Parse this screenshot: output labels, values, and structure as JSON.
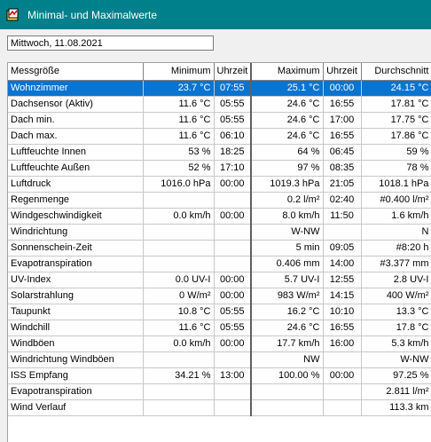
{
  "window": {
    "title": "Minimal- und Maximalwerte"
  },
  "date": "Mittwoch, 11.08.2021",
  "columns": {
    "name": "Messgröße",
    "min": "Minimum",
    "min_time": "Uhrzeit",
    "max": "Maximum",
    "max_time": "Uhrzeit",
    "avg": "Durchschnitt"
  },
  "rows": [
    [
      "Wohnzimmer",
      "23.7 °C",
      "07:55",
      "25.1 °C",
      "00:00",
      "24.15 °C"
    ],
    [
      "Dachsensor (Aktiv)",
      "11.6 °C",
      "05:55",
      "24.6 °C",
      "16:55",
      "17.81 °C"
    ],
    [
      "Dach min.",
      "11.6 °C",
      "05:55",
      "24.6 °C",
      "17:00",
      "17.75 °C"
    ],
    [
      "Dach max.",
      "11.6 °C",
      "06:10",
      "24.6 °C",
      "16:55",
      "17.86 °C"
    ],
    [
      "Luftfeuchte Innen",
      "53 %",
      "18:25",
      "64 %",
      "06:45",
      "59 %"
    ],
    [
      "Luftfeuchte Außen",
      "52 %",
      "17:10",
      "97 %",
      "08:35",
      "78 %"
    ],
    [
      "Luftdruck",
      "1016.0 hPa",
      "00:00",
      "1019.3 hPa",
      "21:05",
      "1018.1 hPa"
    ],
    [
      "Regenmenge",
      "",
      "",
      "0.2 l/m²",
      "02:40",
      "#0.400 l/m²"
    ],
    [
      "Windgeschwindigkeit",
      "0.0 km/h",
      "00:00",
      "8.0 km/h",
      "11:50",
      "1.6 km/h"
    ],
    [
      "Windrichtung",
      "",
      "",
      "W-NW",
      "",
      "N"
    ],
    [
      "Sonnenschein-Zeit",
      "",
      "",
      "5 min",
      "09:05",
      "#8:20 h"
    ],
    [
      "Evapotranspiration",
      "",
      "",
      "0.406 mm",
      "14:00",
      "#3.377 mm"
    ],
    [
      "UV-Index",
      "0.0 UV-I",
      "00:00",
      "5.7 UV-I",
      "12:55",
      "2.8 UV-I"
    ],
    [
      "Solarstrahlung",
      "0 W/m²",
      "00:00",
      "983 W/m²",
      "14:15",
      "400 W/m²"
    ],
    [
      "Taupunkt",
      "10.8 °C",
      "05:55",
      "16.2 °C",
      "10:10",
      "13.3 °C"
    ],
    [
      "Windchill",
      "11.6 °C",
      "05:55",
      "24.6 °C",
      "16:55",
      "17.8 °C"
    ],
    [
      "Windböen",
      "0.0 km/h",
      "00:00",
      "17.7 km/h",
      "16:00",
      "5.3 km/h"
    ],
    [
      "Windrichtung Windböen",
      "",
      "",
      "NW",
      "",
      "W-NW"
    ],
    [
      "ISS Empfang",
      "34.21 %",
      "13:00",
      "100.00 %",
      "00:00",
      "97.25 %"
    ],
    [
      "Evapotranspiration",
      "",
      "",
      "",
      "",
      "2.811 l/m²"
    ],
    [
      "Wind Verlauf",
      "",
      "",
      "",
      "",
      "113.3 km"
    ]
  ],
  "selected_row": 0
}
